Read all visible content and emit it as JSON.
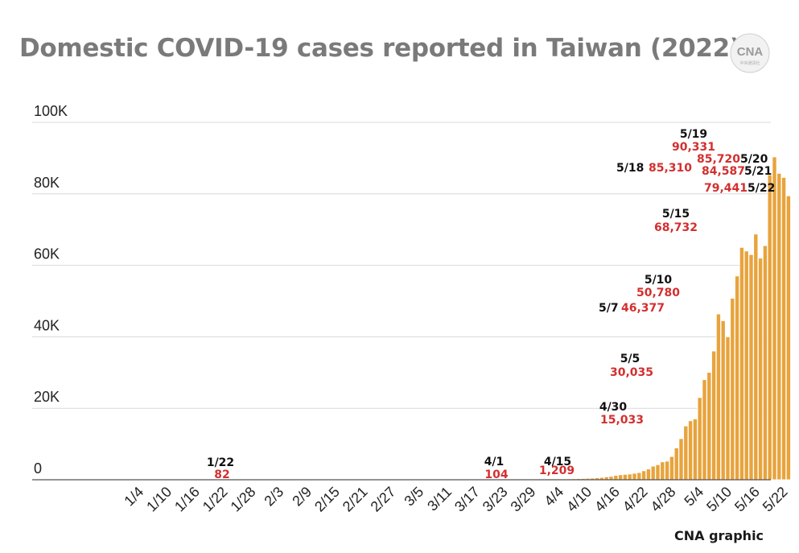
{
  "title": "Domestic COVID-19 cases reported in Taiwan (2022)",
  "logo": {
    "text": "CNA",
    "subtext": "中央通訊社"
  },
  "credit": "CNA graphic",
  "colors": {
    "bar": "#e8a33c",
    "bar_edge": "#ffffff",
    "grid": "#d9d9d9",
    "axis": "#555555",
    "value_label": "#d32f2f",
    "date_label": "#111111",
    "tick_label": "#222222",
    "title": "#7a7a7a"
  },
  "chart_data": {
    "type": "bar",
    "title": "Domestic COVID-19 cases reported in Taiwan (2022)",
    "xlabel": "",
    "ylabel": "",
    "ylim": [
      0,
      100000
    ],
    "grid": true,
    "y_ticks": [
      {
        "value": 0,
        "label": "0"
      },
      {
        "value": 20000,
        "label": "20K"
      },
      {
        "value": 40000,
        "label": "40K"
      },
      {
        "value": 60000,
        "label": "60K"
      },
      {
        "value": 80000,
        "label": "80K"
      },
      {
        "value": 100000,
        "label": "100K"
      }
    ],
    "x_tick_labels": [
      "1/4",
      "1/10",
      "1/16",
      "1/22",
      "1/28",
      "2/3",
      "2/9",
      "2/15",
      "2/21",
      "2/27",
      "3/5",
      "3/11",
      "3/17",
      "3/23",
      "3/29",
      "4/4",
      "4/10",
      "4/16",
      "4/22",
      "4/28",
      "5/4",
      "5/10",
      "5/16",
      "5/22"
    ],
    "bars": [
      {
        "date": "1/22",
        "value": 82
      },
      {
        "date": "4/1",
        "value": 104
      },
      {
        "date": "4/2",
        "value": 120
      },
      {
        "date": "4/3",
        "value": 150
      },
      {
        "date": "4/4",
        "value": 200
      },
      {
        "date": "4/5",
        "value": 230
      },
      {
        "date": "4/6",
        "value": 260
      },
      {
        "date": "4/7",
        "value": 300
      },
      {
        "date": "4/8",
        "value": 340
      },
      {
        "date": "4/9",
        "value": 400
      },
      {
        "date": "4/10",
        "value": 450
      },
      {
        "date": "4/11",
        "value": 550
      },
      {
        "date": "4/12",
        "value": 650
      },
      {
        "date": "4/13",
        "value": 800
      },
      {
        "date": "4/14",
        "value": 950
      },
      {
        "date": "4/15",
        "value": 1209
      },
      {
        "date": "4/16",
        "value": 1400
      },
      {
        "date": "4/17",
        "value": 1500
      },
      {
        "date": "4/18",
        "value": 1600
      },
      {
        "date": "4/19",
        "value": 1800
      },
      {
        "date": "4/20",
        "value": 2000
      },
      {
        "date": "4/21",
        "value": 2500
      },
      {
        "date": "4/22",
        "value": 3000
      },
      {
        "date": "4/23",
        "value": 3800
      },
      {
        "date": "4/24",
        "value": 4200
      },
      {
        "date": "4/25",
        "value": 5000
      },
      {
        "date": "4/26",
        "value": 5200
      },
      {
        "date": "4/27",
        "value": 6500
      },
      {
        "date": "4/28",
        "value": 8900
      },
      {
        "date": "4/29",
        "value": 11500
      },
      {
        "date": "4/30",
        "value": 15033
      },
      {
        "date": "5/1",
        "value": 16500
      },
      {
        "date": "5/2",
        "value": 17000
      },
      {
        "date": "5/3",
        "value": 23000
      },
      {
        "date": "5/4",
        "value": 28000
      },
      {
        "date": "5/5",
        "value": 30035
      },
      {
        "date": "5/6",
        "value": 36000
      },
      {
        "date": "5/7",
        "value": 46377
      },
      {
        "date": "5/8",
        "value": 44500
      },
      {
        "date": "5/9",
        "value": 40000
      },
      {
        "date": "5/10",
        "value": 50780
      },
      {
        "date": "5/11",
        "value": 57000
      },
      {
        "date": "5/12",
        "value": 65000
      },
      {
        "date": "5/13",
        "value": 64000
      },
      {
        "date": "5/14",
        "value": 63000
      },
      {
        "date": "5/15",
        "value": 68732
      },
      {
        "date": "5/16",
        "value": 62000
      },
      {
        "date": "5/17",
        "value": 65500
      },
      {
        "date": "5/18",
        "value": 85310
      },
      {
        "date": "5/19",
        "value": 90331
      },
      {
        "date": "5/20",
        "value": 85720
      },
      {
        "date": "5/21",
        "value": 84587
      },
      {
        "date": "5/22",
        "value": 79441
      }
    ],
    "annotations": [
      {
        "date": "1/22",
        "date_label": "1/22",
        "value_label": "82"
      },
      {
        "date": "4/1",
        "date_label": "4/1",
        "value_label": "104"
      },
      {
        "date": "4/15",
        "date_label": "4/15",
        "value_label": "1,209"
      },
      {
        "date": "4/30",
        "date_label": "4/30",
        "value_label": "15,033"
      },
      {
        "date": "5/5",
        "date_label": "5/5",
        "value_label": "30,035"
      },
      {
        "date": "5/7",
        "date_label": "5/7",
        "value_label": "46,377"
      },
      {
        "date": "5/10",
        "date_label": "5/10",
        "value_label": "50,780"
      },
      {
        "date": "5/15",
        "date_label": "5/15",
        "value_label": "68,732"
      },
      {
        "date": "5/18",
        "date_label": "5/18",
        "value_label": "85,310"
      },
      {
        "date": "5/19",
        "date_label": "5/19",
        "value_label": "90,331"
      },
      {
        "date": "5/20",
        "date_label": "5/20",
        "value_label": "85,720"
      },
      {
        "date": "5/21",
        "date_label": "5/21",
        "value_label": "84,587"
      },
      {
        "date": "5/22",
        "date_label": "5/22",
        "value_label": "79,441"
      }
    ]
  }
}
